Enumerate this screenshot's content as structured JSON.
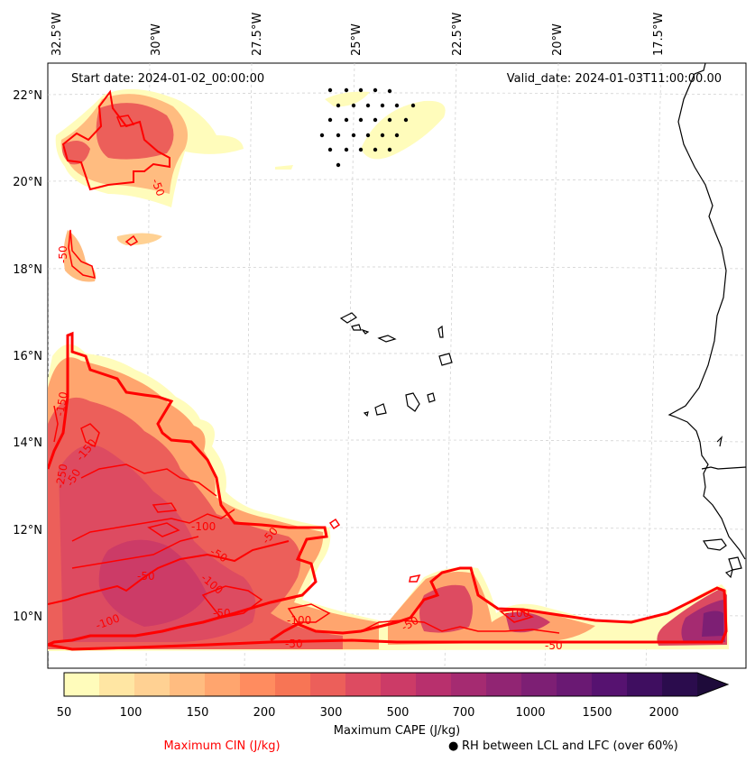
{
  "map": {
    "start_date": "Start date: 2024-01-02_00:00:00",
    "valid_date": "Valid_date: 2024-01-03T11:00:00.00",
    "lon_labels": [
      "32.5°W",
      "30°W",
      "27.5°W",
      "25°W",
      "22.5°W",
      "20°W",
      "17.5°W"
    ],
    "lat_labels": [
      "22°N",
      "20°N",
      "18°N",
      "16°N",
      "14°N",
      "12°N",
      "10°N"
    ],
    "cin_contour_labels": [
      "-50",
      "-50",
      "-100",
      "-100",
      "-50",
      "-50",
      "-100",
      "-50",
      "-50",
      "-100",
      "-50",
      "-250",
      "-150",
      "-150",
      "-50",
      "-50",
      "-100",
      "-50"
    ]
  },
  "colorbar": {
    "tick_labels": [
      "50",
      "100",
      "150",
      "200",
      "300",
      "500",
      "700",
      "1000",
      "1500",
      "2000"
    ],
    "label": "Maximum CAPE (J/kg)",
    "colors": [
      "#fffcbb",
      "#ffe6a3",
      "#ffd193",
      "#ffbc80",
      "#ffa56e",
      "#ff8c5f",
      "#f77555",
      "#ec5f5a",
      "#dd4b61",
      "#cc3b67",
      "#b8306d",
      "#a52b71",
      "#912573",
      "#7d1f74",
      "#6a1973",
      "#561270",
      "#3f0e60",
      "#2b0c4d",
      "#1e0b3a"
    ]
  },
  "legend": {
    "cin_label": "Maximum CIN (J/kg)",
    "rh_label": "RH between LCL and LFC (over 60%)",
    "rh_marker": "●",
    "cin_color": "#ff0000"
  }
}
